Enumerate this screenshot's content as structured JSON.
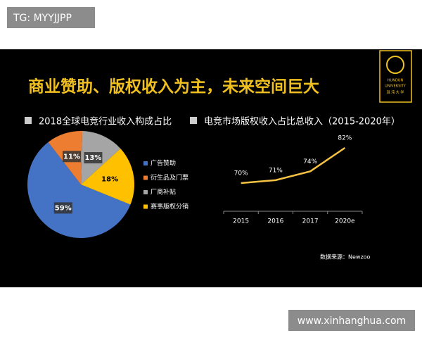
{
  "watermark": "TG: MYYJJPP",
  "header": {
    "title": "商业赞助、版权收入为主，未来空间巨大",
    "logo_line1": "HUNDUN",
    "logo_line2": "UNIVERSITY",
    "logo_line3": "混 沌 大 学"
  },
  "chart_data": [
    {
      "type": "pie",
      "title": "2018全球电竞行业收入构成占比",
      "categories": [
        "广告赞助",
        "衍生品及门票",
        "厂商补贴",
        "赛事版权分销"
      ],
      "values": [
        59,
        11,
        13,
        18
      ],
      "value_labels": [
        "59%",
        "11%",
        "13%",
        "18%"
      ],
      "colors": [
        "#4472c4",
        "#ed7d31",
        "#a5a5a5",
        "#ffc000"
      ],
      "legend": "right"
    },
    {
      "type": "line",
      "title": "电竞市场版权收入占比总收入（2015-2020年）",
      "categories": [
        "2015",
        "2016",
        "2017",
        "2020e"
      ],
      "values": [
        70,
        71,
        74,
        82
      ],
      "value_labels": [
        "70%",
        "71%",
        "74%",
        "82%"
      ],
      "color": "#f5c242"
    }
  ],
  "source": "数据来源：Newzoo",
  "footer_url": "www.xinhanghua.com"
}
